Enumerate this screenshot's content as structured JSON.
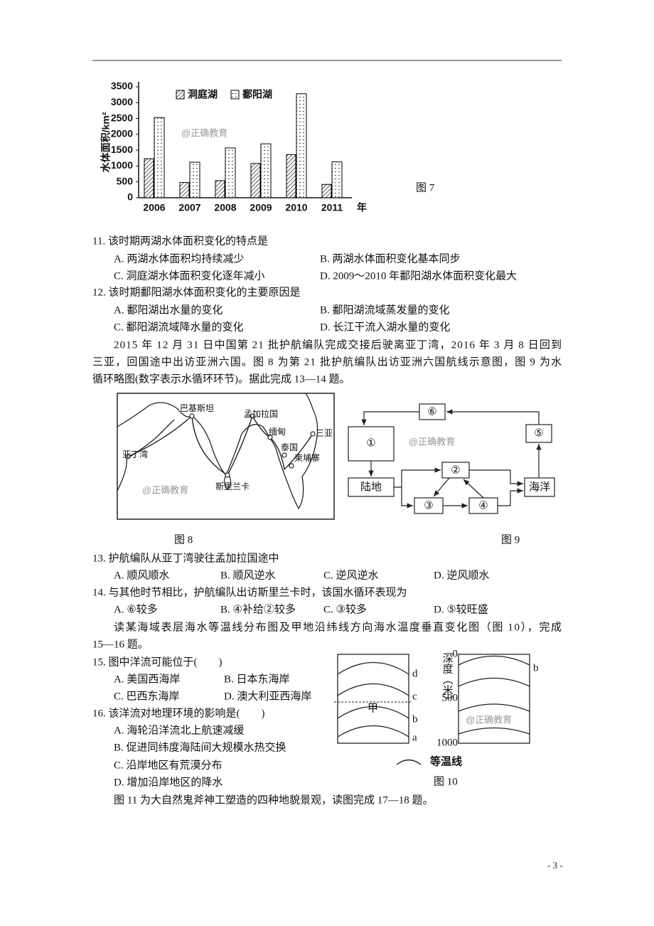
{
  "chart_data": {
    "type": "bar",
    "y_label": "水体面积/km²",
    "x_unit": "年",
    "categories": [
      "2006",
      "2007",
      "2008",
      "2009",
      "2010",
      "2011"
    ],
    "series": [
      {
        "name": "洞庭湖",
        "color": "#000000",
        "pattern": "hatch",
        "values": [
          1230,
          480,
          540,
          1080,
          1360,
          420
        ]
      },
      {
        "name": "鄱阳湖",
        "color": "#000000",
        "pattern": "dots",
        "values": [
          2530,
          1120,
          1570,
          1700,
          3280,
          1130
        ]
      }
    ],
    "ylim": [
      0,
      3500
    ],
    "yticks": [
      0,
      500,
      1000,
      1500,
      2000,
      2500,
      3000,
      3500
    ],
    "watermark": "@正确教育",
    "caption": "图 7"
  },
  "questions": [
    {
      "stem": "11.  该时期两湖水体面积变化的特点是",
      "options": [
        "A.  两湖水体面积均持续减少",
        "B.  两湖水体面积变化基本同步",
        "C.  洞庭湖水体面积变化逐年减小",
        "D.  2009～2010 年鄱阳湖水体面积变化最大"
      ]
    },
    {
      "stem": "12.  该时期鄱阳湖水体面积变化的主要原因是",
      "options": [
        "A.  鄱阳湖出水量的变化",
        "B.  鄱阳湖流域蒸发量的变化",
        "C.  鄱阳湖流域降水量的变化",
        "D.  长江干流入湖水量的变化"
      ]
    },
    {
      "stem": "13.  护航编队从亚丁湾驶往孟加拉国途中",
      "options": [
        "A.  顺风顺水",
        "B.  顺风逆水",
        "C.  逆风逆水",
        "D.  逆风顺水"
      ]
    },
    {
      "stem": "14.  与其他时节相比，护航编队出访斯里兰卡时，该国水循环表现为",
      "options": [
        "A.  ⑥较多",
        "B.  ④补给②较多",
        "C.  ③较多",
        "D.  ⑤较旺盛"
      ]
    },
    {
      "stem": "15.  图中洋流可能位于(　　)",
      "options": [
        "A.  美国西海岸",
        "B.  日本东海岸",
        "C.  巴西东海岸",
        "D.  澳大利亚西海岸"
      ]
    },
    {
      "stem": "16.  该洋流对地理环境的影响是(　　)",
      "options": [
        "A.  海轮沿洋流北上航速减缓",
        "B.  促进同纬度海陆间大规模水热交换",
        "C.  沿岸地区有荒漠分布",
        "D.  增加沿岸地区的降水"
      ]
    }
  ],
  "passages": [
    {
      "lines": [
        "2015 年 12 月 31 日中国第 21 批护航编队完成交接后驶离亚丁湾，2016 年 3 月 8 日回到",
        "三亚，回国途中出访亚洲六国。图 8 为第 21 批护航编队出访亚洲六国航线示意图，图 9 为水",
        "循环略图(数字表示水循环环节)。据此完成 13—14 题。"
      ]
    },
    {
      "lines": [
        "读某海域表层海水等温线分布图及甲地沿纬线方向海水温度垂直变化图（图 10），完成",
        "15—16 题。"
      ]
    },
    {
      "lines": [
        "图 11 为大自然鬼斧神工塑造的四种地貌景观，读图完成 17—18 题。"
      ]
    }
  ],
  "figure8": {
    "labels": [
      "巴基斯坦",
      "孟加拉国",
      "缅甸",
      "三亚",
      "泰国",
      "柬埔寨",
      "亚丁湾",
      "斯里兰卡"
    ],
    "watermark": "@正确教育",
    "caption": "图 8"
  },
  "figure9": {
    "nodes": [
      "⑥",
      "①",
      "⑤",
      "②",
      "陆地",
      "海洋",
      "③",
      "④"
    ],
    "watermark": "@正确教育",
    "caption": "图 9"
  },
  "figure10": {
    "left_labels": [
      "d",
      "c",
      "b",
      "a",
      "甲"
    ],
    "depth_label": "深度（米）",
    "depth_ticks": [
      "0",
      "500",
      "1000"
    ],
    "right_label": "b",
    "legend": "等温线",
    "watermark": "@正确教育",
    "caption": "图 10"
  },
  "footer": {
    "page": "- 3 -"
  }
}
